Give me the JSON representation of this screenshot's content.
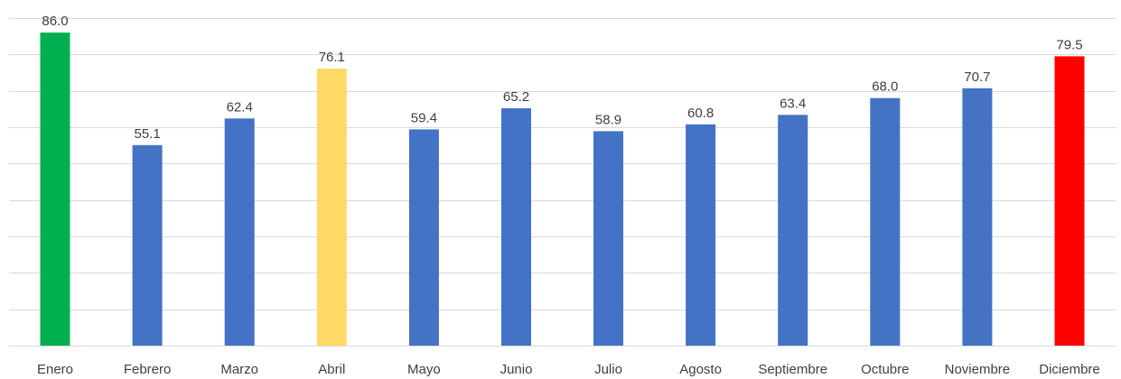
{
  "chart_data": {
    "type": "bar",
    "categories": [
      "Enero",
      "Febrero",
      "Marzo",
      "Abril",
      "Mayo",
      "Junio",
      "Julio",
      "Agosto",
      "Septiembre",
      "Octubre",
      "Noviembre",
      "Diciembre"
    ],
    "values": [
      86.0,
      55.1,
      62.4,
      76.1,
      59.4,
      65.2,
      58.9,
      60.8,
      63.4,
      68.0,
      70.7,
      79.5
    ],
    "value_labels": [
      "86.0",
      "55.1",
      "62.4",
      "76.1",
      "59.4",
      "65.2",
      "58.9",
      "60.8",
      "63.4",
      "68.0",
      "70.7",
      "79.5"
    ],
    "bar_colors": [
      "#00b050",
      "#4472c4",
      "#4472c4",
      "#ffd966",
      "#4472c4",
      "#4472c4",
      "#4472c4",
      "#4472c4",
      "#4472c4",
      "#4472c4",
      "#4472c4",
      "#ff0000"
    ],
    "ylim": [
      0,
      90
    ],
    "grid": true,
    "y_axis_labels_shown": false,
    "title": "",
    "xlabel": "",
    "ylabel": ""
  }
}
